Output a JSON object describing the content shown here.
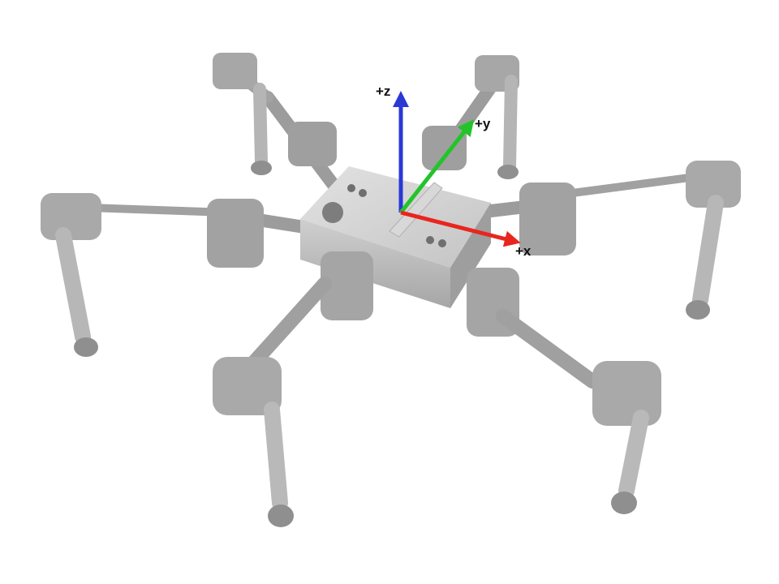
{
  "axes": {
    "z": {
      "label": "+z",
      "color": "#2a38d6"
    },
    "y": {
      "label": "+y",
      "color": "#22c42a"
    },
    "x": {
      "label": "+x",
      "color": "#e8261e"
    }
  },
  "robot": {
    "leg_count": 6,
    "body_color": "#a9a9a9",
    "joint_color": "#9b9b9b",
    "foot_color": "#8f8f8f"
  }
}
